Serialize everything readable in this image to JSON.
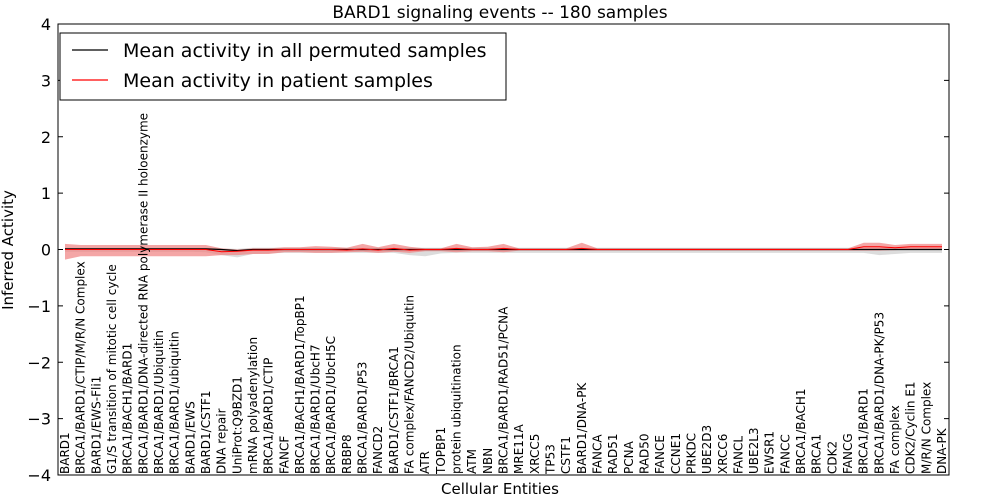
{
  "chart_data": {
    "type": "line",
    "title": "BARD1 signaling events -- 180 samples",
    "xlabel": "Cellular Entities",
    "ylabel": "Inferred Activity",
    "ylim": [
      -4,
      4
    ],
    "yticks": [
      -4,
      -3,
      -2,
      -1,
      0,
      1,
      2,
      3,
      4
    ],
    "ytick_labels": [
      "−4",
      "−3",
      "−2",
      "−1",
      "0",
      "1",
      "2",
      "3",
      "4"
    ],
    "legend": {
      "position": "top-left",
      "entries": [
        {
          "label": "Mean activity in all permuted samples",
          "color": "#000000"
        },
        {
          "label": "Mean activity in patient samples",
          "color": "#ff0000"
        }
      ]
    },
    "colors": {
      "permuted_line": "#000000",
      "patient_line": "#ff0000",
      "patient_band": "#f08080",
      "permuted_band": "#c0c0c0"
    },
    "categories": [
      "BARD1",
      "BRCA1/BARD1/CTIP/M/R/N Complex",
      "BARD1/EWS-Fli1",
      "G1/S transition of mitotic cell cycle",
      "BRCA1/BACH1/BARD1",
      "BRCA1/BARD1/DNA-directed RNA polymerase II holoenzyme",
      "BRCA1/BARD1/Ubiquitin",
      "BRCA1/BARD1/ubiquitin",
      "BARD1/EWS",
      "BARD1/CSTF1",
      "DNA repair",
      "UniProt:Q9BZD1",
      "mRNA polyadenylation",
      "BRCA1/BARD1/CTIP",
      "FANCF",
      "BRCA1/BACH1/BARD1/TopBP1",
      "BRCA1/BARD1/UbcH7",
      "BRCA1/BARD1/UbcH5C",
      "RBBP8",
      "BRCA1/BARD1/P53",
      "FANCD2",
      "BARD1/CSTF1/BRCA1",
      "FA complex/FANCD2/Ubiquitin",
      "ATR",
      "TOPBP1",
      "protein ubiquitination",
      "ATM",
      "NBN",
      "BRCA1/BARD1/RAD51/PCNA",
      "MRE11A",
      "XRCC5",
      "TP53",
      "CSTF1",
      "BARD1/DNA-PK",
      "FANCA",
      "RAD51",
      "PCNA",
      "RAD50",
      "FANCE",
      "CCNE1",
      "PRKDC",
      "UBE2D3",
      "XRCC6",
      "FANCL",
      "UBE2L3",
      "EWSR1",
      "FANCC",
      "BRCA1/BACH1",
      "BRCA1",
      "CDK2",
      "FANCG",
      "BRCA1/BARD1",
      "BRCA1/BARD1/DNA-PK/P53",
      "FA complex",
      "CDK2/Cyclin E1",
      "M/R/N Complex",
      "DNA-PK"
    ],
    "series": [
      {
        "name": "Mean activity in all permuted samples",
        "values": [
          0.01,
          0.01,
          0.01,
          0.01,
          0.01,
          0.01,
          0.01,
          0.01,
          0.01,
          0.01,
          0.0,
          -0.02,
          0.0,
          0.0,
          0.0,
          0.0,
          0.0,
          0.0,
          0.0,
          0.0,
          0.0,
          0.0,
          0.0,
          0.0,
          0.0,
          0.0,
          0.0,
          0.0,
          0.0,
          0.0,
          0.0,
          0.0,
          0.0,
          0.0,
          0.0,
          0.0,
          0.0,
          0.0,
          0.0,
          0.0,
          0.0,
          0.0,
          0.0,
          0.0,
          0.0,
          0.0,
          0.0,
          0.0,
          0.0,
          0.0,
          0.0,
          0.0,
          0.0,
          0.0,
          0.0,
          0.0,
          0.0
        ]
      },
      {
        "name": "Mean activity in patient samples",
        "values": [
          0.0,
          0.0,
          0.0,
          0.0,
          0.0,
          0.0,
          0.0,
          0.0,
          0.0,
          0.0,
          -0.04,
          -0.03,
          -0.01,
          -0.01,
          0.0,
          0.0,
          0.0,
          0.0,
          -0.01,
          0.01,
          -0.01,
          0.02,
          -0.01,
          0.0,
          0.0,
          0.02,
          0.0,
          0.0,
          0.02,
          0.0,
          0.0,
          0.0,
          0.0,
          0.02,
          0.0,
          0.0,
          0.0,
          0.0,
          0.0,
          0.0,
          0.0,
          0.0,
          0.0,
          0.0,
          0.0,
          0.0,
          0.0,
          0.0,
          0.0,
          0.0,
          0.0,
          0.05,
          0.05,
          0.03,
          0.05,
          0.05,
          0.05
        ]
      },
      {
        "name": "patient range upper",
        "values": [
          0.1,
          0.08,
          0.08,
          0.08,
          0.08,
          0.08,
          0.08,
          0.08,
          0.08,
          0.08,
          0.02,
          0.0,
          0.02,
          0.02,
          0.04,
          0.04,
          0.06,
          0.05,
          0.03,
          0.1,
          0.04,
          0.1,
          0.05,
          0.02,
          0.02,
          0.1,
          0.04,
          0.05,
          0.1,
          0.02,
          0.02,
          0.02,
          0.02,
          0.12,
          0.02,
          0.02,
          0.02,
          0.02,
          0.02,
          0.02,
          0.02,
          0.02,
          0.02,
          0.02,
          0.02,
          0.02,
          0.02,
          0.02,
          0.02,
          0.02,
          0.02,
          0.12,
          0.12,
          0.08,
          0.1,
          0.1,
          0.1
        ]
      },
      {
        "name": "patient range lower",
        "values": [
          -0.18,
          -0.12,
          -0.12,
          -0.12,
          -0.12,
          -0.12,
          -0.12,
          -0.12,
          -0.12,
          -0.12,
          -0.1,
          -0.1,
          -0.08,
          -0.08,
          -0.05,
          -0.05,
          -0.06,
          -0.06,
          -0.05,
          -0.04,
          -0.06,
          -0.04,
          -0.06,
          -0.03,
          -0.03,
          -0.05,
          -0.03,
          -0.03,
          -0.05,
          -0.02,
          -0.02,
          -0.02,
          -0.02,
          -0.02,
          -0.02,
          -0.02,
          -0.02,
          -0.02,
          -0.02,
          -0.02,
          -0.02,
          -0.02,
          -0.02,
          -0.02,
          -0.02,
          -0.02,
          -0.02,
          -0.02,
          -0.02,
          -0.02,
          -0.02,
          -0.02,
          -0.02,
          -0.01,
          0.0,
          0.0,
          0.0
        ]
      },
      {
        "name": "permuted range upper",
        "values": [
          0.03,
          0.03,
          0.03,
          0.03,
          0.03,
          0.03,
          0.03,
          0.03,
          0.03,
          0.03,
          0.02,
          0.01,
          0.03,
          0.03,
          0.03,
          0.03,
          0.03,
          0.03,
          0.03,
          0.03,
          0.03,
          0.03,
          0.03,
          0.03,
          0.03,
          0.03,
          0.03,
          0.03,
          0.03,
          0.03,
          0.03,
          0.03,
          0.03,
          0.03,
          0.03,
          0.03,
          0.03,
          0.03,
          0.03,
          0.03,
          0.03,
          0.03,
          0.03,
          0.03,
          0.03,
          0.03,
          0.03,
          0.03,
          0.03,
          0.03,
          0.03,
          0.03,
          0.03,
          0.03,
          0.03,
          0.03,
          0.03
        ]
      },
      {
        "name": "permuted range lower",
        "values": [
          -0.04,
          -0.04,
          -0.04,
          -0.04,
          -0.04,
          -0.04,
          -0.04,
          -0.04,
          -0.04,
          -0.05,
          -0.1,
          -0.14,
          -0.08,
          -0.07,
          -0.06,
          -0.06,
          -0.06,
          -0.06,
          -0.06,
          -0.06,
          -0.06,
          -0.06,
          -0.1,
          -0.12,
          -0.07,
          -0.06,
          -0.06,
          -0.06,
          -0.06,
          -0.06,
          -0.06,
          -0.06,
          -0.06,
          -0.06,
          -0.06,
          -0.06,
          -0.06,
          -0.06,
          -0.06,
          -0.06,
          -0.06,
          -0.06,
          -0.06,
          -0.06,
          -0.06,
          -0.06,
          -0.06,
          -0.06,
          -0.06,
          -0.06,
          -0.06,
          -0.06,
          -0.1,
          -0.08,
          -0.06,
          -0.06,
          -0.06
        ]
      }
    ]
  }
}
